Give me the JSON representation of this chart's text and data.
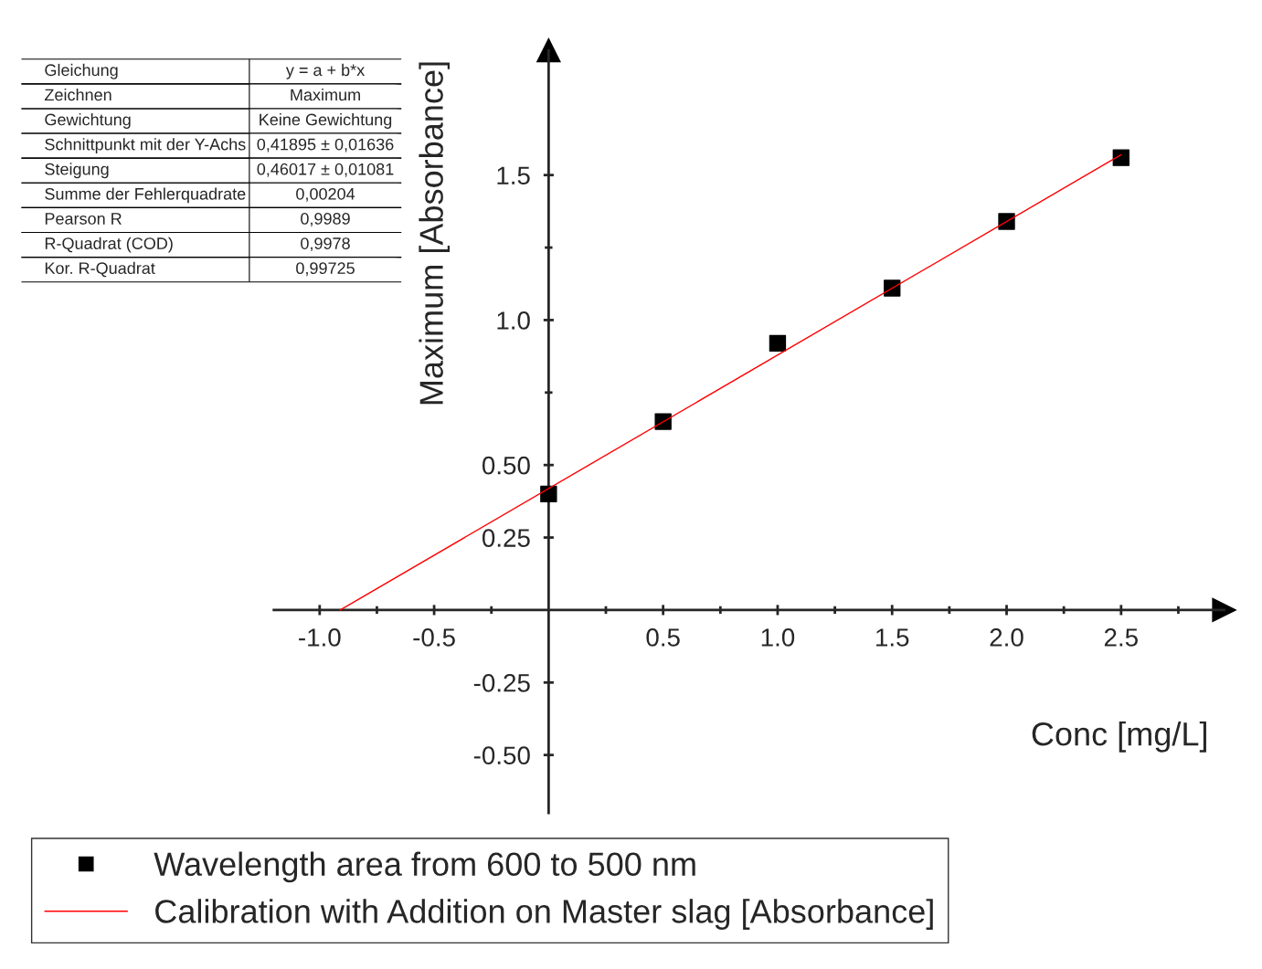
{
  "chart_data": {
    "type": "scatter",
    "xlabel": "Conc [mg/L]",
    "ylabel": "Maximum [Absorbance]",
    "annotations": [
      "Gleichung",
      "y = a + b*x",
      "Zeichnen",
      "Maximum",
      "Gewichtung",
      "Keine Gewichtung",
      "Schnittpunkt mit der Y-Achs",
      "0,41895 ± 0,01636",
      "Steigung",
      "0,46017 ± 0,01081",
      "Summe der Fehlerquadrate",
      "0,00204",
      "Pearson R",
      "0,9989",
      "R-Quadrat (COD)",
      "0,9978",
      "Kor. R-Quadrat",
      "0,99725"
    ],
    "x": [
      0,
      0.5,
      1.0,
      1.5,
      2.0,
      2.5
    ],
    "series": [
      {
        "name": "Wavelength area from 600 to 500 nm",
        "color": "#000000",
        "marker": "square",
        "values": [
          0.4,
          0.65,
          0.92,
          1.11,
          1.34,
          1.56
        ]
      },
      {
        "name": "Calibration with Addition on Master slag [Absorbance]",
        "type": "line",
        "color": "#ff0000",
        "line_style": "solid",
        "x": [
          -0.91,
          2.5
        ],
        "values": [
          0.0,
          1.57
        ]
      }
    ],
    "xlim": [
      -1.2,
      2.95
    ],
    "ylim": [
      -0.7,
      1.93
    ],
    "xticks": [
      {
        "value": -1.0,
        "label": "-1.0"
      },
      {
        "value": -0.75,
        "label": null
      },
      {
        "value": -0.5,
        "label": "-0.5"
      },
      {
        "value": -0.25,
        "label": null
      },
      {
        "value": 0.25,
        "label": null
      },
      {
        "value": 0.5,
        "label": "0.5"
      },
      {
        "value": 0.75,
        "label": null
      },
      {
        "value": 1.0,
        "label": "1.0"
      },
      {
        "value": 1.25,
        "label": null
      },
      {
        "value": 1.5,
        "label": "1.5"
      },
      {
        "value": 1.75,
        "label": null
      },
      {
        "value": 2.0,
        "label": "2.0"
      },
      {
        "value": 2.25,
        "label": null
      },
      {
        "value": 2.5,
        "label": "2.5"
      },
      {
        "value": 2.75,
        "label": null
      }
    ],
    "yticks": [
      {
        "value": -0.5,
        "label": "-0.50"
      },
      {
        "value": -0.25,
        "label": "-0.25"
      },
      {
        "value": 0.25,
        "label": "0.25"
      },
      {
        "value": 0.5,
        "label": "0.50"
      },
      {
        "value": 0.75,
        "label": null
      },
      {
        "value": 1.0,
        "label": "1.0"
      },
      {
        "value": 1.25,
        "label": null
      },
      {
        "value": 1.5,
        "label": "1.5"
      }
    ],
    "grid": false,
    "legend": "bottom left"
  }
}
